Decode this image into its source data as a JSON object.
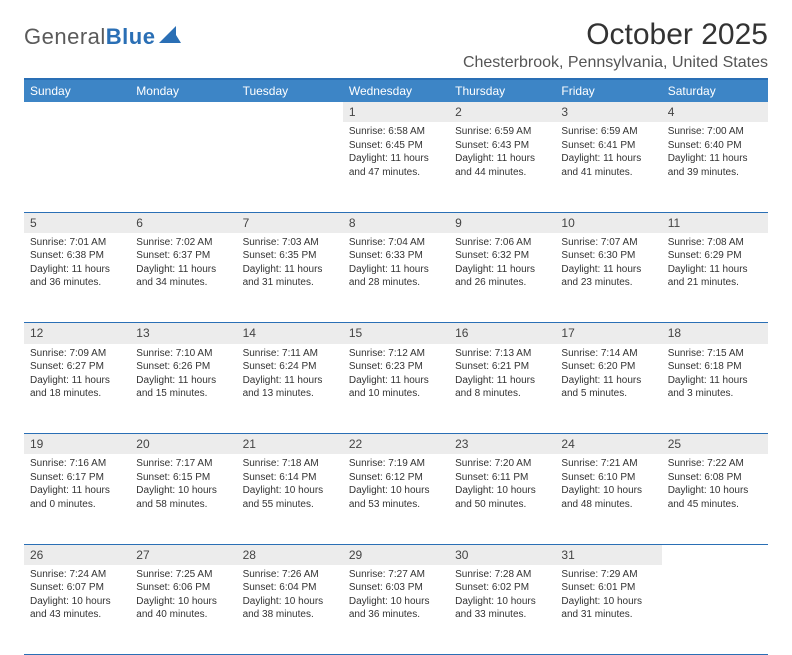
{
  "logo": {
    "word1": "General",
    "word2": "Blue"
  },
  "title": "October 2025",
  "location": "Chesterbrook, Pennsylvania, United States",
  "colors": {
    "header_bg": "#3d85c6",
    "header_border": "#2a6fb5",
    "daynum_bg": "#ececec",
    "text": "#333333",
    "page_bg": "#ffffff"
  },
  "weekdays": [
    "Sunday",
    "Monday",
    "Tuesday",
    "Wednesday",
    "Thursday",
    "Friday",
    "Saturday"
  ],
  "weeks": [
    {
      "nums": [
        "",
        "",
        "",
        "1",
        "2",
        "3",
        "4"
      ],
      "cells": [
        null,
        null,
        null,
        {
          "sunrise": "6:58 AM",
          "sunset": "6:45 PM",
          "dl_h": 11,
          "dl_m": 47
        },
        {
          "sunrise": "6:59 AM",
          "sunset": "6:43 PM",
          "dl_h": 11,
          "dl_m": 44
        },
        {
          "sunrise": "6:59 AM",
          "sunset": "6:41 PM",
          "dl_h": 11,
          "dl_m": 41
        },
        {
          "sunrise": "7:00 AM",
          "sunset": "6:40 PM",
          "dl_h": 11,
          "dl_m": 39
        }
      ]
    },
    {
      "nums": [
        "5",
        "6",
        "7",
        "8",
        "9",
        "10",
        "11"
      ],
      "cells": [
        {
          "sunrise": "7:01 AM",
          "sunset": "6:38 PM",
          "dl_h": 11,
          "dl_m": 36
        },
        {
          "sunrise": "7:02 AM",
          "sunset": "6:37 PM",
          "dl_h": 11,
          "dl_m": 34
        },
        {
          "sunrise": "7:03 AM",
          "sunset": "6:35 PM",
          "dl_h": 11,
          "dl_m": 31
        },
        {
          "sunrise": "7:04 AM",
          "sunset": "6:33 PM",
          "dl_h": 11,
          "dl_m": 28
        },
        {
          "sunrise": "7:06 AM",
          "sunset": "6:32 PM",
          "dl_h": 11,
          "dl_m": 26
        },
        {
          "sunrise": "7:07 AM",
          "sunset": "6:30 PM",
          "dl_h": 11,
          "dl_m": 23
        },
        {
          "sunrise": "7:08 AM",
          "sunset": "6:29 PM",
          "dl_h": 11,
          "dl_m": 21
        }
      ]
    },
    {
      "nums": [
        "12",
        "13",
        "14",
        "15",
        "16",
        "17",
        "18"
      ],
      "cells": [
        {
          "sunrise": "7:09 AM",
          "sunset": "6:27 PM",
          "dl_h": 11,
          "dl_m": 18
        },
        {
          "sunrise": "7:10 AM",
          "sunset": "6:26 PM",
          "dl_h": 11,
          "dl_m": 15
        },
        {
          "sunrise": "7:11 AM",
          "sunset": "6:24 PM",
          "dl_h": 11,
          "dl_m": 13
        },
        {
          "sunrise": "7:12 AM",
          "sunset": "6:23 PM",
          "dl_h": 11,
          "dl_m": 10
        },
        {
          "sunrise": "7:13 AM",
          "sunset": "6:21 PM",
          "dl_h": 11,
          "dl_m": 8
        },
        {
          "sunrise": "7:14 AM",
          "sunset": "6:20 PM",
          "dl_h": 11,
          "dl_m": 5
        },
        {
          "sunrise": "7:15 AM",
          "sunset": "6:18 PM",
          "dl_h": 11,
          "dl_m": 3
        }
      ]
    },
    {
      "nums": [
        "19",
        "20",
        "21",
        "22",
        "23",
        "24",
        "25"
      ],
      "cells": [
        {
          "sunrise": "7:16 AM",
          "sunset": "6:17 PM",
          "dl_h": 11,
          "dl_m": 0
        },
        {
          "sunrise": "7:17 AM",
          "sunset": "6:15 PM",
          "dl_h": 10,
          "dl_m": 58
        },
        {
          "sunrise": "7:18 AM",
          "sunset": "6:14 PM",
          "dl_h": 10,
          "dl_m": 55
        },
        {
          "sunrise": "7:19 AM",
          "sunset": "6:12 PM",
          "dl_h": 10,
          "dl_m": 53
        },
        {
          "sunrise": "7:20 AM",
          "sunset": "6:11 PM",
          "dl_h": 10,
          "dl_m": 50
        },
        {
          "sunrise": "7:21 AM",
          "sunset": "6:10 PM",
          "dl_h": 10,
          "dl_m": 48
        },
        {
          "sunrise": "7:22 AM",
          "sunset": "6:08 PM",
          "dl_h": 10,
          "dl_m": 45
        }
      ]
    },
    {
      "nums": [
        "26",
        "27",
        "28",
        "29",
        "30",
        "31",
        ""
      ],
      "cells": [
        {
          "sunrise": "7:24 AM",
          "sunset": "6:07 PM",
          "dl_h": 10,
          "dl_m": 43
        },
        {
          "sunrise": "7:25 AM",
          "sunset": "6:06 PM",
          "dl_h": 10,
          "dl_m": 40
        },
        {
          "sunrise": "7:26 AM",
          "sunset": "6:04 PM",
          "dl_h": 10,
          "dl_m": 38
        },
        {
          "sunrise": "7:27 AM",
          "sunset": "6:03 PM",
          "dl_h": 10,
          "dl_m": 36
        },
        {
          "sunrise": "7:28 AM",
          "sunset": "6:02 PM",
          "dl_h": 10,
          "dl_m": 33
        },
        {
          "sunrise": "7:29 AM",
          "sunset": "6:01 PM",
          "dl_h": 10,
          "dl_m": 31
        },
        null
      ]
    }
  ],
  "labels": {
    "sunrise": "Sunrise:",
    "sunset": "Sunset:",
    "daylight": "Daylight:",
    "hours": "hours",
    "and": "and",
    "minutes": "minutes."
  }
}
